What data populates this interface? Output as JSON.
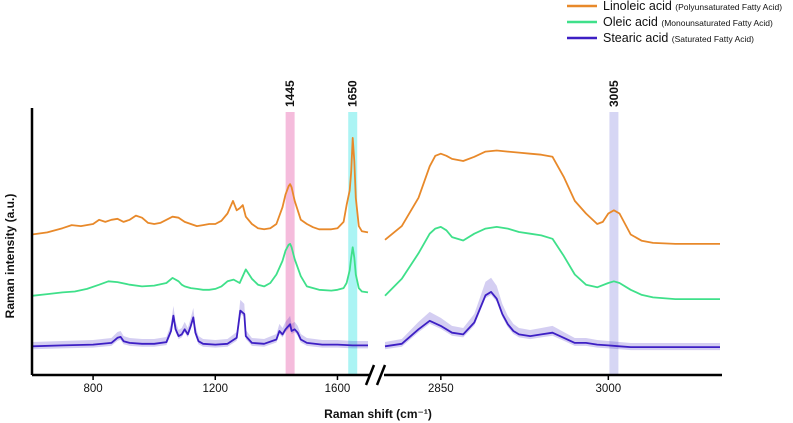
{
  "chart_data": {
    "type": "line",
    "xlabel": "Raman shift (cm⁻¹)",
    "ylabel": "Raman intensity (a.u.)",
    "x_ticks": [
      800,
      1200,
      1600,
      2850,
      3000
    ],
    "x_axis_break": [
      1700,
      2800
    ],
    "segments": [
      {
        "xlim": [
          600,
          1700
        ]
      },
      {
        "xlim": [
          2800,
          3100
        ]
      }
    ],
    "highlight_bands": [
      {
        "center": 1445,
        "label": "1445",
        "color": "#f2a6d0"
      },
      {
        "center": 1650,
        "label": "1650",
        "color": "#8ff0f0"
      },
      {
        "center": 3005,
        "label": "3005",
        "color": "#c8c8f0"
      }
    ],
    "legend": {
      "position": "top-right",
      "entries": [
        {
          "name": "Linoleic acid",
          "note": "(Polyunsaturated Fatty Acid)",
          "color": "#e8892a"
        },
        {
          "name": "Oleic acid",
          "note": "(Monounsaturated Fatty Acid)",
          "color": "#3fe08a"
        },
        {
          "name": "Stearic acid",
          "note": "(Saturated Fatty Acid)",
          "color": "#3d1fc4"
        }
      ]
    },
    "series": [
      {
        "name": "Linoleic acid",
        "color": "#e8892a",
        "left": {
          "x": [
            600,
            650,
            700,
            730,
            760,
            800,
            820,
            840,
            860,
            880,
            900,
            920,
            940,
            960,
            980,
            1000,
            1020,
            1040,
            1060,
            1080,
            1100,
            1120,
            1140,
            1160,
            1180,
            1200,
            1220,
            1240,
            1258,
            1270,
            1280,
            1290,
            1300,
            1320,
            1340,
            1360,
            1380,
            1400,
            1420,
            1430,
            1440,
            1445,
            1450,
            1460,
            1480,
            1500,
            1520,
            1540,
            1560,
            1580,
            1600,
            1620,
            1630,
            1640,
            1645,
            1650,
            1655,
            1660,
            1670,
            1680,
            1700
          ],
          "y": [
            0.1,
            0.12,
            0.16,
            0.19,
            0.18,
            0.2,
            0.24,
            0.22,
            0.24,
            0.25,
            0.22,
            0.24,
            0.28,
            0.26,
            0.21,
            0.2,
            0.21,
            0.24,
            0.27,
            0.26,
            0.22,
            0.2,
            0.18,
            0.19,
            0.2,
            0.2,
            0.23,
            0.3,
            0.42,
            0.33,
            0.35,
            0.38,
            0.27,
            0.2,
            0.16,
            0.15,
            0.16,
            0.2,
            0.36,
            0.48,
            0.56,
            0.58,
            0.55,
            0.42,
            0.24,
            0.2,
            0.17,
            0.15,
            0.15,
            0.15,
            0.16,
            0.22,
            0.38,
            0.52,
            0.7,
            1.02,
            0.8,
            0.45,
            0.18,
            0.13,
            0.12
          ]
        },
        "right": {
          "x": [
            2800,
            2815,
            2830,
            2840,
            2845,
            2850,
            2855,
            2860,
            2870,
            2880,
            2890,
            2900,
            2910,
            2920,
            2930,
            2940,
            2950,
            2960,
            2970,
            2980,
            2990,
            2995,
            3000,
            3005,
            3010,
            3015,
            3020,
            3030,
            3040,
            3060,
            3080,
            3100
          ],
          "y": [
            0.05,
            0.18,
            0.45,
            0.75,
            0.85,
            0.87,
            0.85,
            0.82,
            0.8,
            0.84,
            0.89,
            0.9,
            0.89,
            0.88,
            0.87,
            0.86,
            0.84,
            0.65,
            0.42,
            0.3,
            0.2,
            0.22,
            0.3,
            0.33,
            0.3,
            0.2,
            0.1,
            0.04,
            0.02,
            0.01,
            0.01,
            0.01
          ]
        }
      },
      {
        "name": "Oleic acid",
        "color": "#3fe08a",
        "left": {
          "x": [
            600,
            650,
            700,
            740,
            780,
            820,
            850,
            880,
            920,
            960,
            1000,
            1040,
            1060,
            1080,
            1090,
            1100,
            1120,
            1140,
            1160,
            1180,
            1200,
            1220,
            1240,
            1260,
            1280,
            1300,
            1320,
            1340,
            1360,
            1380,
            1400,
            1420,
            1430,
            1440,
            1445,
            1450,
            1460,
            1480,
            1500,
            1540,
            1580,
            1600,
            1620,
            1630,
            1640,
            1645,
            1650,
            1655,
            1660,
            1670,
            1680,
            1700
          ],
          "y": [
            0.05,
            0.07,
            0.09,
            0.1,
            0.13,
            0.18,
            0.22,
            0.21,
            0.18,
            0.16,
            0.17,
            0.2,
            0.26,
            0.22,
            0.18,
            0.16,
            0.14,
            0.13,
            0.12,
            0.12,
            0.13,
            0.16,
            0.22,
            0.24,
            0.2,
            0.36,
            0.25,
            0.18,
            0.16,
            0.2,
            0.3,
            0.46,
            0.58,
            0.65,
            0.66,
            0.62,
            0.48,
            0.28,
            0.16,
            0.12,
            0.11,
            0.12,
            0.14,
            0.2,
            0.35,
            0.5,
            0.62,
            0.5,
            0.3,
            0.14,
            0.1,
            0.09
          ]
        },
        "right": {
          "x": [
            2800,
            2815,
            2830,
            2840,
            2845,
            2850,
            2855,
            2860,
            2870,
            2880,
            2890,
            2900,
            2910,
            2920,
            2930,
            2940,
            2950,
            2960,
            2970,
            2980,
            2990,
            3000,
            3005,
            3010,
            3020,
            3030,
            3040,
            3060,
            3080,
            3100
          ],
          "y": [
            0.05,
            0.25,
            0.55,
            0.78,
            0.84,
            0.86,
            0.82,
            0.74,
            0.7,
            0.78,
            0.84,
            0.86,
            0.84,
            0.8,
            0.78,
            0.76,
            0.72,
            0.52,
            0.3,
            0.18,
            0.15,
            0.2,
            0.22,
            0.2,
            0.12,
            0.06,
            0.03,
            0.01,
            0.01,
            0.01
          ]
        }
      },
      {
        "name": "Stearic acid",
        "color": "#3d1fc4",
        "left": {
          "x": [
            600,
            700,
            800,
            860,
            880,
            890,
            900,
            920,
            960,
            1000,
            1040,
            1055,
            1063,
            1070,
            1080,
            1090,
            1100,
            1110,
            1120,
            1128,
            1135,
            1145,
            1160,
            1200,
            1240,
            1270,
            1282,
            1295,
            1300,
            1320,
            1360,
            1400,
            1410,
            1420,
            1430,
            1440,
            1445,
            1450,
            1460,
            1470,
            1480,
            1500,
            1550,
            1600,
            1650,
            1700
          ],
          "y": [
            0.02,
            0.03,
            0.04,
            0.06,
            0.12,
            0.13,
            0.08,
            0.06,
            0.05,
            0.05,
            0.07,
            0.2,
            0.38,
            0.22,
            0.14,
            0.16,
            0.22,
            0.16,
            0.26,
            0.36,
            0.18,
            0.08,
            0.05,
            0.04,
            0.05,
            0.12,
            0.44,
            0.4,
            0.14,
            0.06,
            0.05,
            0.1,
            0.2,
            0.16,
            0.22,
            0.26,
            0.28,
            0.2,
            0.22,
            0.18,
            0.1,
            0.06,
            0.04,
            0.04,
            0.03,
            0.03
          ]
        },
        "right": {
          "x": [
            2800,
            2815,
            2830,
            2840,
            2850,
            2860,
            2870,
            2880,
            2890,
            2895,
            2900,
            2905,
            2910,
            2915,
            2920,
            2930,
            2940,
            2950,
            2960,
            2970,
            2980,
            2990,
            3000,
            3010,
            3020,
            3040,
            3060,
            3080,
            3100
          ],
          "y": [
            0.02,
            0.05,
            0.22,
            0.32,
            0.26,
            0.18,
            0.16,
            0.3,
            0.62,
            0.66,
            0.58,
            0.4,
            0.28,
            0.2,
            0.16,
            0.14,
            0.16,
            0.18,
            0.12,
            0.06,
            0.06,
            0.04,
            0.03,
            0.02,
            0.01,
            0.01,
            0.01,
            0.01,
            0.01
          ]
        },
        "has_error_band": true
      }
    ]
  }
}
